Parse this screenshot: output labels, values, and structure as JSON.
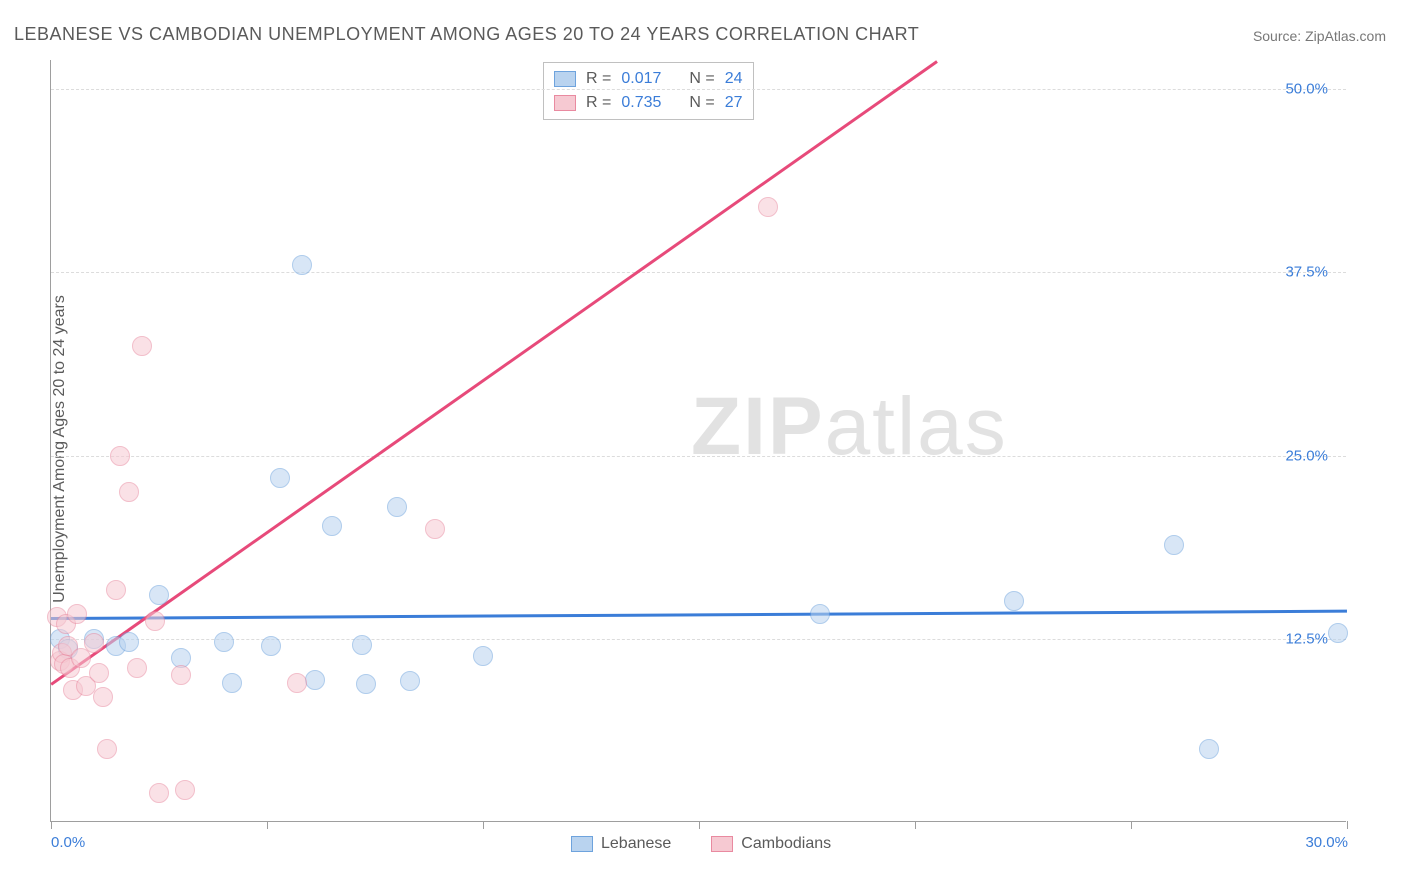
{
  "title": "LEBANESE VS CAMBODIAN UNEMPLOYMENT AMONG AGES 20 TO 24 YEARS CORRELATION CHART",
  "source": "Source: ZipAtlas.com",
  "watermark_part1": "ZIP",
  "watermark_part2": "atlas",
  "ylabel": "Unemployment Among Ages 20 to 24 years",
  "chart": {
    "type": "scatter",
    "background_color": "#ffffff",
    "grid_color": "#dcdcdc",
    "axis_color": "#9e9e9e",
    "tick_label_color": "#3b7dd8",
    "text_color": "#5a5a5a",
    "title_fontsize": 18,
    "label_fontsize": 16,
    "tick_fontsize": 15,
    "xlim": [
      0,
      30
    ],
    "ylim": [
      0,
      52
    ],
    "xticks": [
      0,
      5,
      10,
      15,
      20,
      25,
      30
    ],
    "xtick_labels": {
      "0": "0.0%",
      "30": "30.0%"
    },
    "yticks": [
      12.5,
      25.0,
      37.5,
      50.0
    ],
    "ytick_labels": [
      "12.5%",
      "25.0%",
      "37.5%",
      "50.0%"
    ],
    "marker_radius": 10,
    "marker_opacity": 0.55,
    "legend_stats": [
      {
        "series": "lebanese",
        "R": "0.017",
        "N": "24"
      },
      {
        "series": "cambodians",
        "R": "0.735",
        "N": "27"
      }
    ],
    "bottom_legend": [
      {
        "label": "Lebanese",
        "key": "lebanese"
      },
      {
        "label": "Cambodians",
        "key": "cambodians"
      }
    ],
    "series": {
      "lebanese": {
        "fill_color": "#b9d3ef",
        "stroke_color": "#6ea3dd",
        "trend_color": "#3b7dd8",
        "trend": {
          "x1": 0,
          "y1": 14.0,
          "x2": 30,
          "y2": 14.5
        },
        "points": [
          [
            0.2,
            12.5
          ],
          [
            0.4,
            11.8
          ],
          [
            1.0,
            12.5
          ],
          [
            1.5,
            12.0
          ],
          [
            2.5,
            15.5
          ],
          [
            3.0,
            11.2
          ],
          [
            4.0,
            12.3
          ],
          [
            4.2,
            9.5
          ],
          [
            5.1,
            12.0
          ],
          [
            5.3,
            23.5
          ],
          [
            5.8,
            38.0
          ],
          [
            6.1,
            9.7
          ],
          [
            6.5,
            20.2
          ],
          [
            7.2,
            12.1
          ],
          [
            7.3,
            9.4
          ],
          [
            8.0,
            21.5
          ],
          [
            8.3,
            9.6
          ],
          [
            10.0,
            11.3
          ],
          [
            17.8,
            14.2
          ],
          [
            22.3,
            15.1
          ],
          [
            26.0,
            18.9
          ],
          [
            26.8,
            5.0
          ],
          [
            29.8,
            12.9
          ],
          [
            1.8,
            12.3
          ]
        ]
      },
      "cambodians": {
        "fill_color": "#f6c9d2",
        "stroke_color": "#e98aa0",
        "trend_color": "#e74a7a",
        "trend": {
          "x1": 0,
          "y1": 9.5,
          "x2": 20.5,
          "y2": 52
        },
        "points": [
          [
            0.15,
            14.0
          ],
          [
            0.2,
            11.0
          ],
          [
            0.25,
            11.5
          ],
          [
            0.3,
            10.8
          ],
          [
            0.35,
            13.5
          ],
          [
            0.4,
            12.0
          ],
          [
            0.45,
            10.5
          ],
          [
            0.5,
            9.0
          ],
          [
            0.6,
            14.2
          ],
          [
            0.7,
            11.2
          ],
          [
            0.8,
            9.3
          ],
          [
            1.0,
            12.2
          ],
          [
            1.1,
            10.2
          ],
          [
            1.2,
            8.5
          ],
          [
            1.3,
            5.0
          ],
          [
            1.5,
            15.8
          ],
          [
            1.6,
            25.0
          ],
          [
            1.8,
            22.5
          ],
          [
            2.0,
            10.5
          ],
          [
            2.1,
            32.5
          ],
          [
            2.4,
            13.7
          ],
          [
            2.5,
            2.0
          ],
          [
            3.0,
            10.0
          ],
          [
            3.1,
            2.2
          ],
          [
            5.7,
            9.5
          ],
          [
            8.9,
            20.0
          ],
          [
            16.6,
            42.0
          ]
        ]
      }
    }
  }
}
